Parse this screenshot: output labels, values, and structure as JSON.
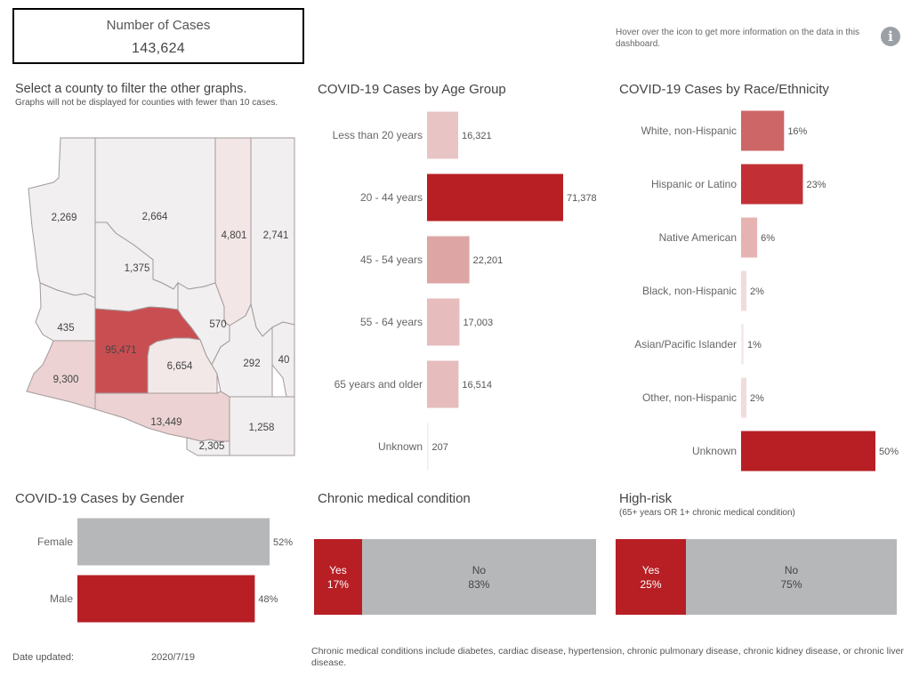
{
  "kpi": {
    "label": "Number of Cases",
    "value": "143,624"
  },
  "hover_note": "Hover over the icon to get more information on the data in this dashboard.",
  "info_icon": "i",
  "map": {
    "title": "Select a county to filter the other graphs.",
    "subtitle": "Graphs will not be displayed for counties with fewer than 10 cases.",
    "counties": [
      {
        "id": "mohave",
        "value": "2,269"
      },
      {
        "id": "coconino",
        "value": "2,664"
      },
      {
        "id": "navajo",
        "value": "4,801"
      },
      {
        "id": "apache",
        "value": "2,741"
      },
      {
        "id": "yavapai",
        "value": "1,375"
      },
      {
        "id": "la-paz",
        "value": "435"
      },
      {
        "id": "maricopa",
        "value": "95,471"
      },
      {
        "id": "gila",
        "value": "570"
      },
      {
        "id": "yuma",
        "value": "9,300"
      },
      {
        "id": "pinal",
        "value": "6,654"
      },
      {
        "id": "graham",
        "value": "292"
      },
      {
        "id": "greenlee",
        "value": "40"
      },
      {
        "id": "pima",
        "value": "13,449"
      },
      {
        "id": "santa-cruz",
        "value": "2,305"
      },
      {
        "id": "cochise",
        "value": "1,258"
      }
    ]
  },
  "gender_title": "COVID-19 Cases by Gender",
  "chronic_title": "Chronic medical condition",
  "highrisk_title": "High-risk",
  "highrisk_subtitle": "(65+ years OR 1+ chronic medical condition)",
  "footer": {
    "date_label": "Date updated:",
    "date_value": "2020/7/19",
    "note": "Chronic medical conditions include diabetes, cardiac disease, hypertension, chronic pulmonary disease, chronic kidney disease, or chronic liver disease."
  },
  "chart_data": [
    {
      "type": "bar",
      "orientation": "horizontal",
      "title": "COVID-19 Cases by Age Group",
      "categories": [
        "Less than 20 years",
        "20 - 44 years",
        "45 - 54 years",
        "55 - 64 years",
        "65 years and older",
        "Unknown"
      ],
      "values": [
        16321,
        71378,
        22201,
        17003,
        16514,
        207
      ],
      "labels": [
        "16,321",
        "71,378",
        "22,201",
        "17,003",
        "16,514",
        "207"
      ],
      "colors": [
        "#e8c4c4",
        "#b71f24",
        "#dea5a5",
        "#e6bcbc",
        "#e6bcbc",
        "#f7eaea"
      ]
    },
    {
      "type": "bar",
      "orientation": "horizontal",
      "title": "COVID-19 Cases by Race/Ethnicity",
      "categories": [
        "White, non-Hispanic",
        "Hispanic or Latino",
        "Native American",
        "Black, non-Hispanic",
        "Asian/Pacific Islander",
        "Other, non-Hispanic",
        "Unknown"
      ],
      "values": [
        16,
        23,
        6,
        2,
        1,
        2,
        50
      ],
      "labels": [
        "16%",
        "23%",
        "6%",
        "2%",
        "1%",
        "2%",
        "50%"
      ],
      "colors": [
        "#cd6666",
        "#c23036",
        "#e6b3b3",
        "#f1dcdc",
        "#f6eaea",
        "#f1dcdc",
        "#b71f24"
      ]
    },
    {
      "type": "bar",
      "orientation": "horizontal",
      "categories": [
        "Female",
        "Male"
      ],
      "values": [
        52,
        48
      ],
      "labels": [
        "52%",
        "48%"
      ],
      "colors": [
        "#b6b7b8",
        "#b71f24"
      ]
    },
    {
      "type": "bar",
      "orientation": "stacked-100",
      "categories": [
        "Yes",
        "No"
      ],
      "values": [
        17,
        83
      ],
      "labels": [
        "17%",
        "83%"
      ],
      "colors": [
        "#b71f24",
        "#b6b7b8"
      ]
    },
    {
      "type": "bar",
      "orientation": "stacked-100",
      "categories": [
        "Yes",
        "No"
      ],
      "values": [
        25,
        75
      ],
      "labels": [
        "25%",
        "75%"
      ],
      "colors": [
        "#b71f24",
        "#b6b7b8"
      ]
    }
  ]
}
